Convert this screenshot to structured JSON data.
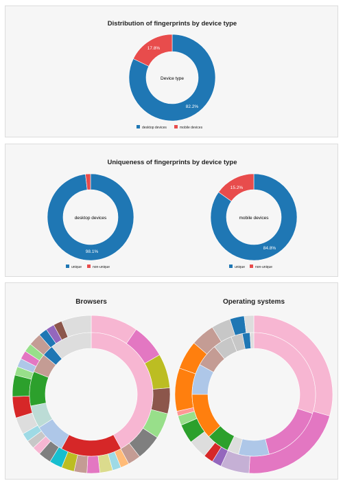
{
  "panels": {
    "device": {
      "title": "Distribution of fingerprints by device type"
    },
    "unique": {
      "title": "Uniqueness of fingerprints by device type"
    },
    "sun": {
      "browsers_title": "Browsers",
      "os_title": "Operating systems"
    }
  },
  "colors": {
    "blue": "#1f77b4",
    "red": "#e84c4c"
  },
  "chart_data": [
    {
      "type": "pie",
      "title": "Distribution of fingerprints by device type",
      "center_label": "Device type",
      "categories": [
        "desktop devices",
        "mobile devices"
      ],
      "values": [
        82.2,
        17.8
      ],
      "value_labels": [
        "82.2%",
        "17.8%"
      ],
      "colors": [
        "#1f77b4",
        "#e84c4c"
      ],
      "legend": "bottom"
    },
    {
      "type": "pie",
      "title": "Uniqueness of fingerprints by device type",
      "center_label": "desktop devices",
      "categories": [
        "unique",
        "non-unique"
      ],
      "values": [
        98.1,
        1.9
      ],
      "value_labels": [
        "98.1%",
        ""
      ],
      "colors": [
        "#1f77b4",
        "#e84c4c"
      ],
      "legend": "bottom"
    },
    {
      "type": "pie",
      "title": "Uniqueness of fingerprints by device type",
      "center_label": "mobile devices",
      "categories": [
        "unique",
        "non-unique"
      ],
      "values": [
        84.8,
        15.2
      ],
      "value_labels": [
        "84.8%",
        "15.2%"
      ],
      "colors": [
        "#1f77b4",
        "#e84c4c"
      ],
      "legend": "bottom"
    },
    {
      "type": "pie",
      "title": "Browsers",
      "inner_ring": [
        {
          "value": 42,
          "color": "#f7b6d2"
        },
        {
          "value": 16,
          "color": "#d62728"
        },
        {
          "value": 8,
          "color": "#aec7e8"
        },
        {
          "value": 6,
          "color": "#bcdcd6"
        },
        {
          "value": 9,
          "color": "#2ca02c"
        },
        {
          "value": 5,
          "color": "#c49c94"
        },
        {
          "value": 3,
          "color": "#1f77b4"
        },
        {
          "value": 11,
          "color": "#dddddd"
        }
      ],
      "outer_ring": [
        {
          "value": 11,
          "color": "#f7b6d2"
        },
        {
          "value": 8,
          "color": "#e377c2"
        },
        {
          "value": 8,
          "color": "#bcbd22"
        },
        {
          "value": 6,
          "color": "#8c564b"
        },
        {
          "value": 6,
          "color": "#98df8a"
        },
        {
          "value": 6,
          "color": "#7f7f7f"
        },
        {
          "value": 3,
          "color": "#c49c94"
        },
        {
          "value": 2,
          "color": "#ffbb78"
        },
        {
          "value": 2,
          "color": "#9edae5"
        },
        {
          "value": 3,
          "color": "#dbdb8d"
        },
        {
          "value": 3,
          "color": "#e377c2"
        },
        {
          "value": 3,
          "color": "#c49c94"
        },
        {
          "value": 3,
          "color": "#bcbd22"
        },
        {
          "value": 3,
          "color": "#17becf"
        },
        {
          "value": 3,
          "color": "#7f7f7f"
        },
        {
          "value": 2,
          "color": "#f7b6d2"
        },
        {
          "value": 2,
          "color": "#c7c7c7"
        },
        {
          "value": 2,
          "color": "#9edae5"
        },
        {
          "value": 4,
          "color": "#dddddd"
        },
        {
          "value": 5,
          "color": "#d62728"
        },
        {
          "value": 5,
          "color": "#2ca02c"
        },
        {
          "value": 2,
          "color": "#98df8a"
        },
        {
          "value": 2,
          "color": "#aec7e8"
        },
        {
          "value": 2,
          "color": "#e377c2"
        },
        {
          "value": 2,
          "color": "#98df8a"
        },
        {
          "value": 3,
          "color": "#c49c94"
        },
        {
          "value": 2,
          "color": "#1f77b4"
        },
        {
          "value": 2,
          "color": "#9467bd"
        },
        {
          "value": 2,
          "color": "#8c564b"
        },
        {
          "value": 7,
          "color": "#dddddd"
        }
      ]
    },
    {
      "type": "pie",
      "title": "Operating systems",
      "inner_ring": [
        {
          "value": 30,
          "color": "#f7b6d2"
        },
        {
          "value": 16,
          "color": "#e377c2"
        },
        {
          "value": 8,
          "color": "#aec7e8"
        },
        {
          "value": 3,
          "color": "#dddddd"
        },
        {
          "value": 6,
          "color": "#2ca02c"
        },
        {
          "value": 12,
          "color": "#ff7f0e"
        },
        {
          "value": 8,
          "color": "#aec7e8"
        },
        {
          "value": 6,
          "color": "#c49c94"
        },
        {
          "value": 5,
          "color": "#c7c7c7"
        },
        {
          "value": 3,
          "color": "#c7c7c7"
        },
        {
          "value": 2,
          "color": "#1f77b4"
        },
        {
          "value": 1,
          "color": "#dddddd"
        }
      ],
      "outer_ring": [
        {
          "value": 30,
          "color": "#f7b6d2"
        },
        {
          "value": 22,
          "color": "#e377c2"
        },
        {
          "value": 6,
          "color": "#c5b0d5"
        },
        {
          "value": 2,
          "color": "#9467bd"
        },
        {
          "value": 2,
          "color": "#d62728"
        },
        {
          "value": 4,
          "color": "#dddddd"
        },
        {
          "value": 4,
          "color": "#2ca02c"
        },
        {
          "value": 2,
          "color": "#98df8a"
        },
        {
          "value": 1,
          "color": "#ff9896"
        },
        {
          "value": 9,
          "color": "#ff7f0e"
        },
        {
          "value": 6,
          "color": "#ff7f0e"
        },
        {
          "value": 5,
          "color": "#c49c94"
        },
        {
          "value": 4,
          "color": "#c7c7c7"
        },
        {
          "value": 3,
          "color": "#1f77b4"
        },
        {
          "value": 2,
          "color": "#dddddd"
        }
      ]
    }
  ]
}
